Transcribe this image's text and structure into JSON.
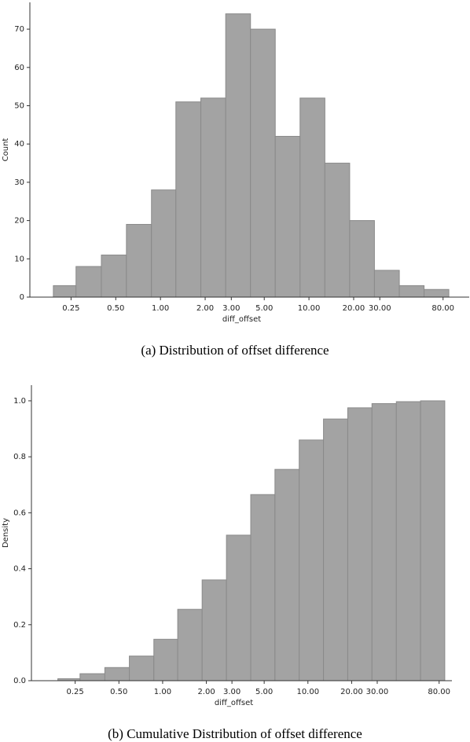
{
  "chart_data": [
    {
      "type": "histogram",
      "caption": "(a)  Distribution of offset difference",
      "xlabel": "diff_offset",
      "ylabel": "Count",
      "bins": [
        0.19,
        0.27,
        0.4,
        0.59,
        0.87,
        1.27,
        1.87,
        2.75,
        4.04,
        5.93,
        8.71,
        12.8,
        18.8,
        27.6,
        40.6,
        59.6,
        87.5
      ],
      "values": [
        3,
        8,
        11,
        19,
        28,
        51,
        52,
        74,
        70,
        42,
        52,
        35,
        20,
        7,
        3,
        2
      ],
      "color": "#a3a3a3",
      "xscale": "log",
      "xlim": [
        0.132,
        120
      ],
      "xticks": [
        0.25,
        {
          "value": 0.5,
          "label": "0.50"
        },
        {
          "value": 1,
          "label": "1.00"
        },
        {
          "value": 2,
          "label": "2.00"
        },
        {
          "value": 3,
          "label": "3.00"
        },
        {
          "value": 5,
          "label": "5.00"
        },
        {
          "value": 10,
          "label": "10.00"
        },
        {
          "value": 20,
          "label": "20.00"
        },
        {
          "value": 30,
          "label": "30.00"
        },
        {
          "value": 80,
          "label": "80.00"
        }
      ],
      "ylim": [
        0,
        77
      ],
      "yticks": [
        0,
        10,
        20,
        30,
        40,
        50,
        60,
        70
      ]
    },
    {
      "type": "histogram",
      "caption": "(b)  Cumulative Distribution of offset difference",
      "xlabel": "diff_offset",
      "ylabel": "Density",
      "bins": [
        0.19,
        0.27,
        0.4,
        0.59,
        0.87,
        1.27,
        1.87,
        2.75,
        4.04,
        5.93,
        8.71,
        12.8,
        18.8,
        27.6,
        40.6,
        59.6,
        87.5
      ],
      "values": [
        0.007,
        0.025,
        0.047,
        0.088,
        0.148,
        0.255,
        0.36,
        0.52,
        0.665,
        0.755,
        0.86,
        0.935,
        0.975,
        0.99,
        0.997,
        1.0
      ],
      "color": "#a3a3a3",
      "xscale": "log",
      "xlim": [
        0.125,
        98
      ],
      "xticks": [
        0.25,
        {
          "value": 0.5,
          "label": "0.50"
        },
        {
          "value": 1,
          "label": "1.00"
        },
        {
          "value": 2,
          "label": "2.00"
        },
        {
          "value": 3,
          "label": "3.00"
        },
        {
          "value": 5,
          "label": "5.00"
        },
        {
          "value": 10,
          "label": "10.00"
        },
        {
          "value": 20,
          "label": "20.00"
        },
        {
          "value": 30,
          "label": "30.00"
        },
        {
          "value": 80,
          "label": "80.00"
        }
      ],
      "ylim": [
        0,
        1.056
      ],
      "yticks": [
        {
          "value": 0,
          "label": "0.0"
        },
        0.2,
        0.4,
        0.6,
        0.8,
        {
          "value": 1,
          "label": "1.0"
        }
      ]
    }
  ]
}
